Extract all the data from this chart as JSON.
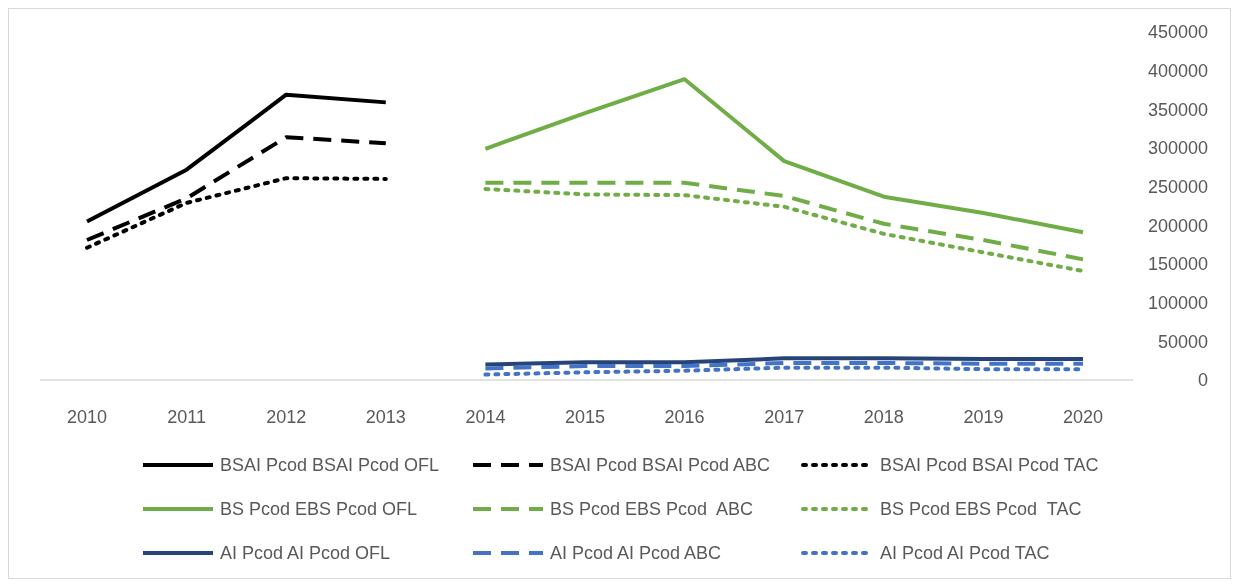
{
  "chart_data": {
    "type": "line",
    "categories": [
      "2010",
      "2011",
      "2012",
      "2013",
      "2014",
      "2015",
      "2016",
      "2017",
      "2018",
      "2019",
      "2020"
    ],
    "ylim": [
      0,
      450000
    ],
    "yticks": [
      0,
      50000,
      100000,
      150000,
      200000,
      250000,
      300000,
      350000,
      400000,
      450000
    ],
    "grid": false,
    "legend": "bottom",
    "marker": "none",
    "series": [
      {
        "name": "BSAI Pcod BSAI Pcod OFL",
        "color": "#000000",
        "line_style": "solid",
        "values": [
          205000,
          272000,
          369000,
          359000,
          null,
          null,
          null,
          null,
          null,
          null,
          null
        ]
      },
      {
        "name": "BSAI Pcod BSAI Pcod ABC",
        "color": "#000000",
        "line_style": "dashed",
        "values": [
          181000,
          235000,
          314000,
          306000,
          null,
          null,
          null,
          null,
          null,
          null,
          null
        ]
      },
      {
        "name": "BSAI Pcod BSAI Pcod TAC",
        "color": "#000000",
        "line_style": "dotted",
        "values": [
          171000,
          229000,
          261000,
          260000,
          null,
          null,
          null,
          null,
          null,
          null,
          null
        ]
      },
      {
        "name": "BS Pcod EBS Pcod OFL",
        "color": "#70ad47",
        "line_style": "solid",
        "values": [
          null,
          null,
          null,
          null,
          299000,
          345000,
          389000,
          283000,
          237000,
          216000,
          191000
        ]
      },
      {
        "name": "BS Pcod EBS Pcod  ABC",
        "color": "#70ad47",
        "line_style": "dashed",
        "values": [
          null,
          null,
          null,
          null,
          255000,
          255000,
          255000,
          238000,
          202000,
          181000,
          156000
        ]
      },
      {
        "name": "BS Pcod EBS Pcod  TAC",
        "color": "#70ad47",
        "line_style": "dotted",
        "values": [
          null,
          null,
          null,
          null,
          247000,
          240000,
          239000,
          224000,
          189000,
          165000,
          141000
        ]
      },
      {
        "name": "AI Pcod AI Pcod OFL",
        "color": "#264478",
        "line_style": "solid",
        "values": [
          null,
          null,
          null,
          null,
          20000,
          23000,
          23000,
          28000,
          28000,
          27000,
          27000
        ]
      },
      {
        "name": "AI Pcod AI Pcod ABC",
        "color": "#4472c4",
        "line_style": "dashed",
        "values": [
          null,
          null,
          null,
          null,
          15000,
          18000,
          18000,
          22000,
          22000,
          21000,
          21000
        ]
      },
      {
        "name": "AI Pcod AI Pcod TAC",
        "color": "#4472c4",
        "line_style": "dotted",
        "values": [
          null,
          null,
          null,
          null,
          7000,
          10000,
          12000,
          16000,
          16000,
          14000,
          14000
        ]
      }
    ]
  }
}
